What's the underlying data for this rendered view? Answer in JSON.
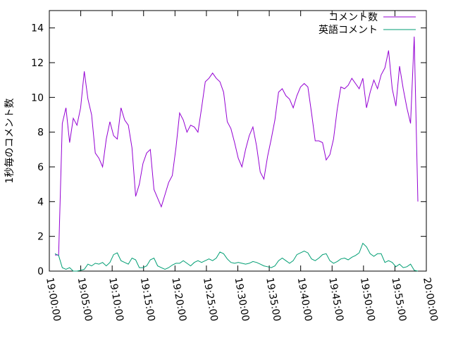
{
  "chart_data": {
    "type": "line",
    "y_label": "1秒毎のコメント数",
    "xlim": [
      "19:00:00",
      "20:00:00"
    ],
    "xticks": [
      "19:00:00",
      "19:05:00",
      "19:10:00",
      "19:15:00",
      "19:20:00",
      "19:25:00",
      "19:30:00",
      "19:35:00",
      "19:40:00",
      "19:45:00",
      "19:50:00",
      "19:55:00",
      "20:00:00"
    ],
    "ylim": [
      0,
      15
    ],
    "yticks": [
      0,
      2,
      4,
      6,
      8,
      10,
      12,
      14
    ],
    "legend": "top-right",
    "x": [
      "19:00:54",
      "19:01:29",
      "19:02:04",
      "19:02:39",
      "19:03:14",
      "19:03:49",
      "19:04:24",
      "19:04:59",
      "19:05:34",
      "19:06:09",
      "19:06:44",
      "19:07:19",
      "19:07:54",
      "19:08:29",
      "19:09:04",
      "19:09:39",
      "19:10:14",
      "19:10:49",
      "19:11:24",
      "19:11:59",
      "19:12:34",
      "19:13:09",
      "19:13:44",
      "19:14:19",
      "19:14:54",
      "19:15:29",
      "19:16:04",
      "19:16:39",
      "19:17:14",
      "19:17:49",
      "19:18:24",
      "19:18:59",
      "19:19:34",
      "19:20:09",
      "19:20:44",
      "19:21:19",
      "19:21:54",
      "19:22:29",
      "19:23:04",
      "19:23:39",
      "19:24:14",
      "19:24:49",
      "19:25:24",
      "19:25:59",
      "19:26:34",
      "19:27:09",
      "19:27:44",
      "19:28:19",
      "19:28:54",
      "19:29:29",
      "19:30:04",
      "19:30:39",
      "19:31:14",
      "19:31:49",
      "19:32:24",
      "19:32:59",
      "19:33:34",
      "19:34:09",
      "19:34:44",
      "19:35:19",
      "19:35:54",
      "19:36:29",
      "19:37:04",
      "19:37:39",
      "19:38:14",
      "19:38:49",
      "19:39:24",
      "19:39:59",
      "19:40:34",
      "19:41:09",
      "19:41:44",
      "19:42:19",
      "19:42:54",
      "19:43:29",
      "19:44:04",
      "19:44:39",
      "19:45:14",
      "19:45:49",
      "19:46:24",
      "19:46:59",
      "19:47:34",
      "19:48:09",
      "19:48:44",
      "19:49:19",
      "19:49:54",
      "19:50:29",
      "19:51:04",
      "19:51:39",
      "19:52:14",
      "19:52:49",
      "19:53:24",
      "19:53:59",
      "19:54:34",
      "19:55:09",
      "19:55:44",
      "19:56:19",
      "19:56:54",
      "19:57:29",
      "19:58:04",
      "19:58:39"
    ],
    "series": [
      {
        "name": "コメント数",
        "color": "#9400d3",
        "values": [
          0.93,
          0.93,
          8.5,
          9.4,
          7.4,
          8.8,
          8.4,
          9.4,
          11.5,
          9.9,
          9.0,
          6.8,
          6.5,
          6.0,
          7.6,
          8.6,
          7.8,
          7.6,
          9.4,
          8.7,
          8.4,
          7.1,
          4.3,
          5.0,
          6.2,
          6.8,
          7.0,
          4.7,
          4.2,
          3.7,
          4.4,
          5.1,
          5.5,
          7.1,
          9.1,
          8.7,
          8.0,
          8.4,
          8.3,
          8.0,
          9.4,
          10.9,
          11.1,
          11.4,
          11.1,
          10.9,
          10.3,
          8.6,
          8.2,
          7.4,
          6.5,
          6.0,
          7.0,
          7.8,
          8.3,
          7.2,
          5.7,
          5.3,
          6.6,
          7.6,
          8.7,
          10.3,
          10.5,
          10.1,
          9.9,
          9.4,
          10.1,
          10.6,
          10.8,
          10.6,
          9.1,
          7.5,
          7.5,
          7.4,
          6.4,
          6.7,
          7.6,
          9.3,
          10.6,
          10.5,
          10.7,
          11.1,
          10.8,
          10.5,
          11.1,
          9.4,
          10.3,
          11.0,
          10.5,
          11.3,
          11.7,
          12.7,
          10.5,
          9.5,
          11.8,
          10.5,
          9.4,
          8.5,
          13.5,
          4.0
        ]
      },
      {
        "name": "英語コメント",
        "color": "#009e73",
        "values": [
          1.0,
          0.9,
          0.2,
          0.1,
          0.2,
          0.0,
          0.0,
          0.05,
          0.1,
          0.4,
          0.3,
          0.45,
          0.4,
          0.5,
          0.3,
          0.5,
          0.95,
          1.05,
          0.6,
          0.5,
          0.4,
          0.75,
          0.65,
          0.2,
          0.2,
          0.3,
          0.65,
          0.75,
          0.3,
          0.2,
          0.1,
          0.2,
          0.35,
          0.45,
          0.45,
          0.6,
          0.45,
          0.3,
          0.5,
          0.6,
          0.5,
          0.6,
          0.7,
          0.6,
          0.75,
          1.1,
          1.0,
          0.7,
          0.5,
          0.45,
          0.5,
          0.45,
          0.4,
          0.45,
          0.55,
          0.5,
          0.4,
          0.3,
          0.25,
          0.2,
          0.3,
          0.6,
          0.75,
          0.6,
          0.45,
          0.6,
          0.95,
          1.05,
          1.15,
          1.05,
          0.7,
          0.6,
          0.75,
          0.95,
          1.0,
          0.6,
          0.45,
          0.55,
          0.7,
          0.75,
          0.65,
          0.8,
          0.9,
          1.05,
          1.6,
          1.4,
          1.0,
          0.85,
          1.0,
          1.0,
          0.5,
          0.6,
          0.5,
          0.25,
          0.4,
          0.2,
          0.25,
          0.4,
          0.05,
          0.0
        ]
      }
    ]
  }
}
